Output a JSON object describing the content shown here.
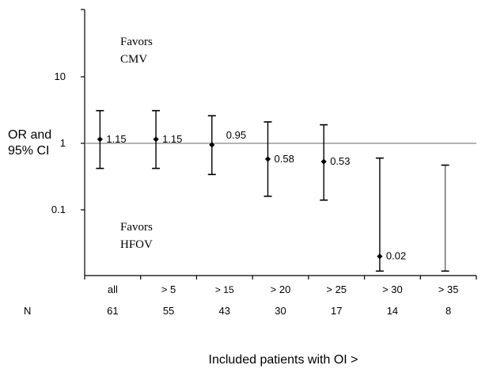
{
  "chart_data": {
    "type": "scatter",
    "subtype": "forest-plot",
    "ylabel": [
      "OR and",
      "95% CI"
    ],
    "xlabel": "Included patients with OI >",
    "y_scale": "log",
    "ylim": [
      0.01,
      100
    ],
    "yticks": [
      {
        "value": 10,
        "label": "10"
      },
      {
        "value": 1,
        "label": "1"
      },
      {
        "value": 0.1,
        "label": "0.1"
      }
    ],
    "reference_line": 1,
    "categories": [
      "all",
      "> 5",
      "> 15",
      "> 20",
      "> 25",
      "> 30",
      "> 35"
    ],
    "n_label": "N",
    "n_values": [
      "61",
      "55",
      "43",
      "30",
      "17",
      "14",
      "8"
    ],
    "or_values": [
      1.15,
      1.15,
      0.95,
      0.58,
      0.53,
      0.02,
      null
    ],
    "or_labels": [
      "1.15",
      "1.15",
      "0.95",
      "0.58",
      "0.53",
      "0.02",
      ""
    ],
    "ci_lower": [
      0.42,
      0.42,
      0.34,
      0.16,
      0.14,
      0.012,
      0.012
    ],
    "ci_upper": [
      3.1,
      3.1,
      2.6,
      2.1,
      1.9,
      0.6,
      0.47
    ],
    "annotations": {
      "favors_top": [
        "Favors",
        "CMV"
      ],
      "favors_bottom": [
        "Favors",
        "HFOV"
      ]
    },
    "grid": false,
    "legend": "none",
    "colors": {
      "marks": "#000000",
      "reference": "#888888",
      "errorbar_last": "#666666"
    }
  }
}
